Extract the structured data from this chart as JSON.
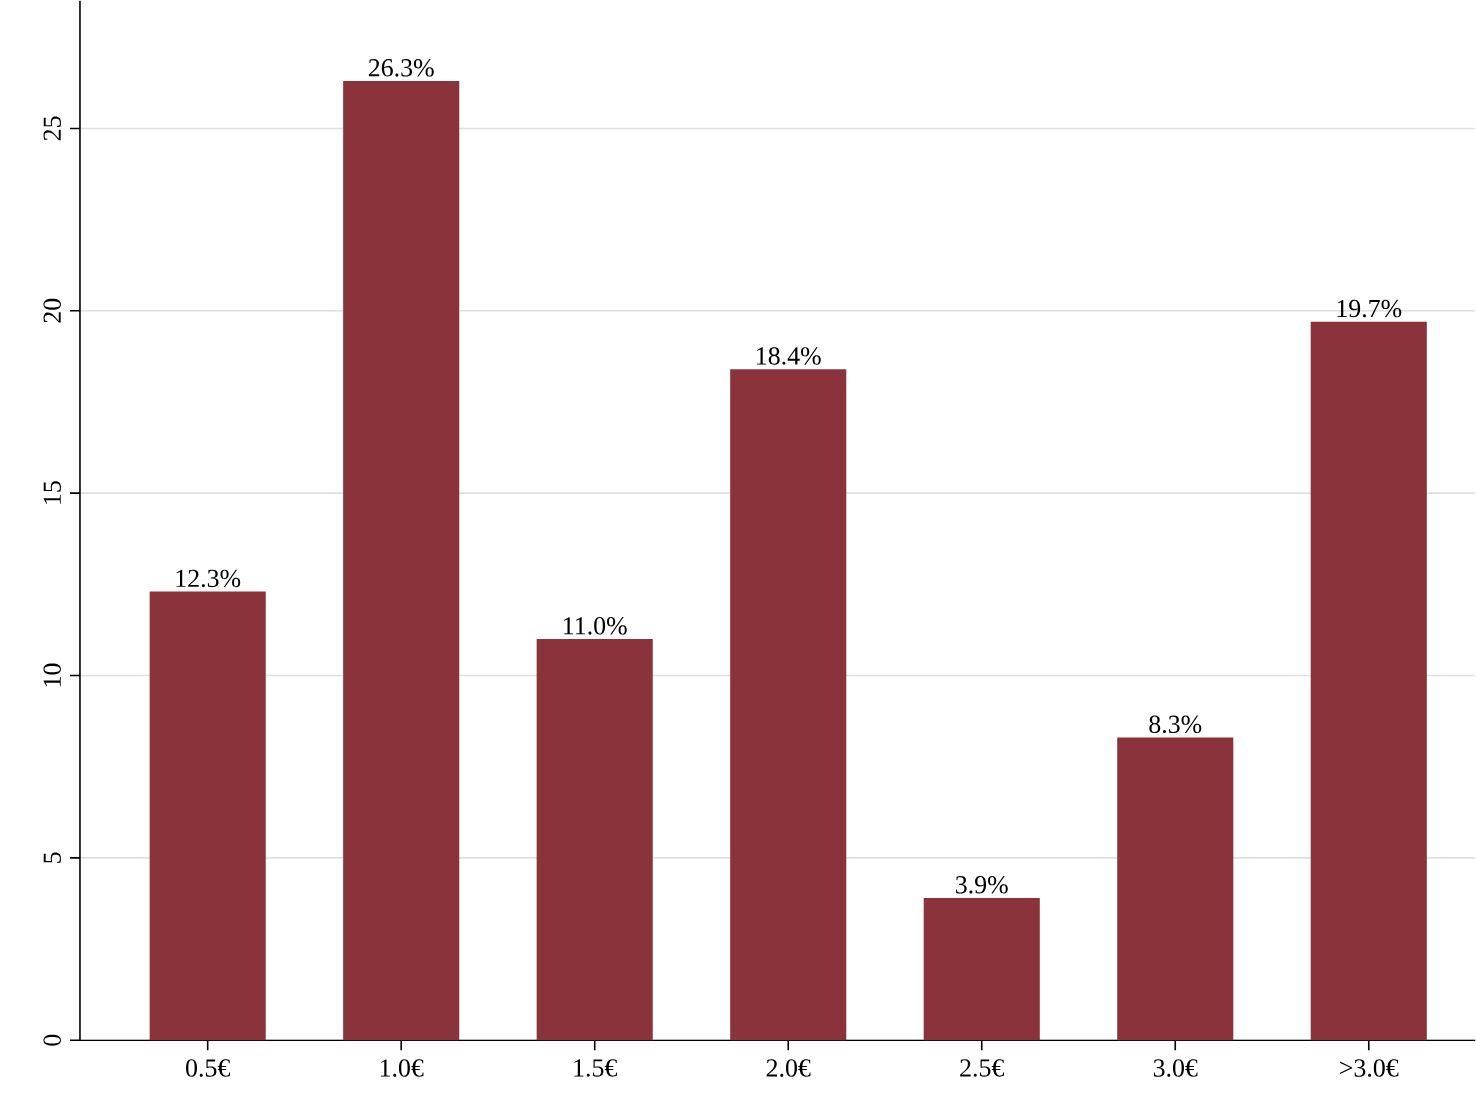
{
  "chart_data": {
    "type": "bar",
    "categories": [
      "0.5€",
      "1.0€",
      "1.5€",
      "2.0€",
      "2.5€",
      "3.0€",
      ">3.0€"
    ],
    "values": [
      12.3,
      26.3,
      11.0,
      18.4,
      3.9,
      8.3,
      19.7
    ],
    "value_labels": [
      "12.3%",
      "26.3%",
      "11.0%",
      "18.4%",
      "3.9%",
      "8.3%",
      "19.7%"
    ],
    "color": "#8b333b",
    "ylim": [
      0,
      28.5
    ],
    "yticks": [
      0,
      5,
      10,
      15,
      20,
      25
    ],
    "grid": "y"
  }
}
